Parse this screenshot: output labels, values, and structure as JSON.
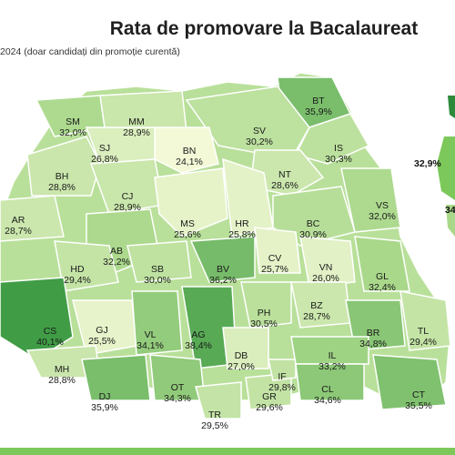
{
  "title": "Rata de promovare la Bacalaureat",
  "subtitle": "2024 (doar candidați din promoție curentă)",
  "palette": {
    "low": "#f4f9d8",
    "mid": "#a9d88a",
    "high": "#3fa748",
    "border": "#ffffff"
  },
  "counties": [
    {
      "code": "SM",
      "value": "32,0%",
      "rate": 32.0
    },
    {
      "code": "MM",
      "value": "28,9%",
      "rate": 28.9
    },
    {
      "code": "BT",
      "value": "35,9%",
      "rate": 35.9
    },
    {
      "code": "SV",
      "value": "30,2%",
      "rate": 30.2
    },
    {
      "code": "BN",
      "value": "24,1%",
      "rate": 24.1
    },
    {
      "code": "SJ",
      "value": "26,8%",
      "rate": 26.8
    },
    {
      "code": "IS",
      "value": "30,3%",
      "rate": 30.3
    },
    {
      "code": "BH",
      "value": "28,8%",
      "rate": 28.8
    },
    {
      "code": "CJ",
      "value": "28,9%",
      "rate": 28.9
    },
    {
      "code": "NT",
      "value": "28,6%",
      "rate": 28.6
    },
    {
      "code": "MS",
      "value": "25,6%",
      "rate": 25.6
    },
    {
      "code": "HR",
      "value": "25,8%",
      "rate": 25.8
    },
    {
      "code": "BC",
      "value": "30,9%",
      "rate": 30.9
    },
    {
      "code": "VS",
      "value": "32,0%",
      "rate": 32.0
    },
    {
      "code": "AR",
      "value": "28,7%",
      "rate": 28.7
    },
    {
      "code": "AB",
      "value": "32,2%",
      "rate": 32.2
    },
    {
      "code": "HD",
      "value": "29,4%",
      "rate": 29.4
    },
    {
      "code": "SB",
      "value": "30,0%",
      "rate": 30.0
    },
    {
      "code": "BV",
      "value": "36,2%",
      "rate": 36.2
    },
    {
      "code": "CV",
      "value": "25,7%",
      "rate": 25.7
    },
    {
      "code": "VN",
      "value": "26,0%",
      "rate": 26.0
    },
    {
      "code": "GL",
      "value": "32,4%",
      "rate": 32.4
    },
    {
      "code": "CS",
      "value": "40,1%",
      "rate": 40.1
    },
    {
      "code": "GJ",
      "value": "25,5%",
      "rate": 25.5
    },
    {
      "code": "VL",
      "value": "34,1%",
      "rate": 34.1
    },
    {
      "code": "AG",
      "value": "38,4%",
      "rate": 38.4
    },
    {
      "code": "PH",
      "value": "30,5%",
      "rate": 30.5
    },
    {
      "code": "BZ",
      "value": "28,7%",
      "rate": 28.7
    },
    {
      "code": "BR",
      "value": "34,8%",
      "rate": 34.8
    },
    {
      "code": "TL",
      "value": "29,4%",
      "rate": 29.4
    },
    {
      "code": "DB",
      "value": "27,0%",
      "rate": 27.0
    },
    {
      "code": "MH",
      "value": "28,8%",
      "rate": 28.8
    },
    {
      "code": "DJ",
      "value": "35,9%",
      "rate": 35.9
    },
    {
      "code": "OT",
      "value": "34,3%",
      "rate": 34.3
    },
    {
      "code": "TR",
      "value": "29,5%",
      "rate": 29.5
    },
    {
      "code": "GR",
      "value": "29,6%",
      "rate": 29.6
    },
    {
      "code": "IF",
      "value": "29,8%",
      "rate": 29.8
    },
    {
      "code": "IL",
      "value": "33,2%",
      "rate": 33.2
    },
    {
      "code": "CL",
      "value": "34,6%",
      "rate": 34.6
    },
    {
      "code": "CT",
      "value": "35,5%",
      "rate": 35.5
    }
  ],
  "side_labels": [
    {
      "value": "32,9%"
    },
    {
      "value": "34"
    }
  ]
}
